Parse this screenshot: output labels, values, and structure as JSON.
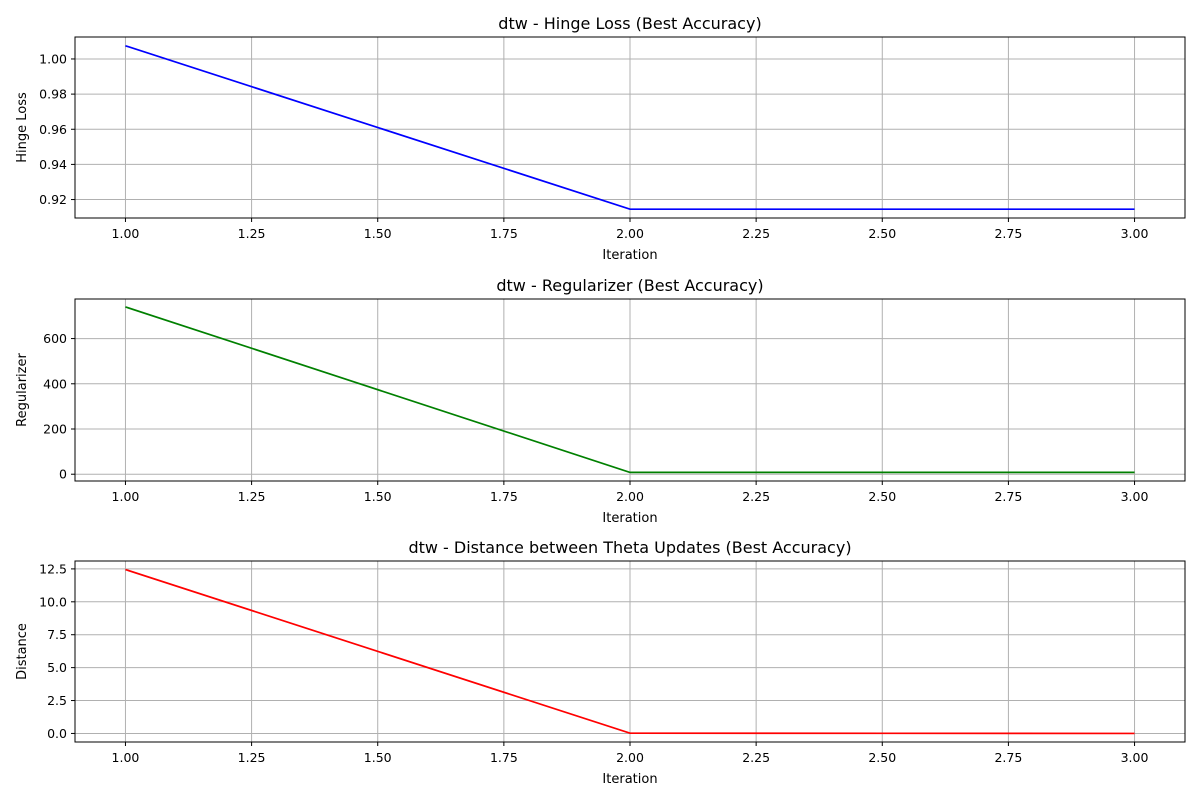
{
  "chart_data": [
    {
      "type": "line",
      "title": "dtw - Hinge Loss (Best Accuracy)",
      "xlabel": "Iteration",
      "ylabel": "Hinge Loss",
      "x": [
        1,
        2,
        3
      ],
      "series": [
        {
          "values": [
            1.0075,
            0.9145,
            0.9145
          ],
          "color": "#0000ff"
        }
      ],
      "xlim": [
        0.9,
        3.1
      ],
      "ylim": [
        0.9095,
        1.0125
      ],
      "xticks": [
        1.0,
        1.25,
        1.5,
        1.75,
        2.0,
        2.25,
        2.5,
        2.75,
        3.0
      ],
      "xtick_labels": [
        "1.00",
        "1.25",
        "1.50",
        "1.75",
        "2.00",
        "2.25",
        "2.50",
        "2.75",
        "3.00"
      ],
      "yticks": [
        0.92,
        0.94,
        0.96,
        0.98,
        1.0
      ],
      "ytick_labels": [
        "0.92",
        "0.94",
        "0.96",
        "0.98",
        "1.00"
      ],
      "grid": true
    },
    {
      "type": "line",
      "title": "dtw - Regularizer (Best Accuracy)",
      "xlabel": "Iteration",
      "ylabel": "Regularizer",
      "x": [
        1,
        2,
        3
      ],
      "series": [
        {
          "values": [
            740,
            8,
            8
          ],
          "color": "#008000"
        }
      ],
      "xlim": [
        0.9,
        3.1
      ],
      "ylim": [
        -30,
        775
      ],
      "xticks": [
        1.0,
        1.25,
        1.5,
        1.75,
        2.0,
        2.25,
        2.5,
        2.75,
        3.0
      ],
      "xtick_labels": [
        "1.00",
        "1.25",
        "1.50",
        "1.75",
        "2.00",
        "2.25",
        "2.50",
        "2.75",
        "3.00"
      ],
      "yticks": [
        0,
        200,
        400,
        600
      ],
      "ytick_labels": [
        "0",
        "200",
        "400",
        "600"
      ],
      "grid": true
    },
    {
      "type": "line",
      "title": "dtw - Distance between Theta Updates (Best Accuracy)",
      "xlabel": "Iteration",
      "ylabel": "Distance",
      "x": [
        1,
        2,
        3
      ],
      "series": [
        {
          "values": [
            12.45,
            0.02,
            0.0
          ],
          "color": "#ff0000"
        }
      ],
      "xlim": [
        0.9,
        3.1
      ],
      "ylim": [
        -0.65,
        13.1
      ],
      "xticks": [
        1.0,
        1.25,
        1.5,
        1.75,
        2.0,
        2.25,
        2.5,
        2.75,
        3.0
      ],
      "xtick_labels": [
        "1.00",
        "1.25",
        "1.50",
        "1.75",
        "2.00",
        "2.25",
        "2.50",
        "2.75",
        "3.00"
      ],
      "yticks": [
        0.0,
        2.5,
        5.0,
        7.5,
        10.0,
        12.5
      ],
      "ytick_labels": [
        "0.0",
        "2.5",
        "5.0",
        "7.5",
        "10.0",
        "12.5"
      ],
      "grid": true
    }
  ]
}
